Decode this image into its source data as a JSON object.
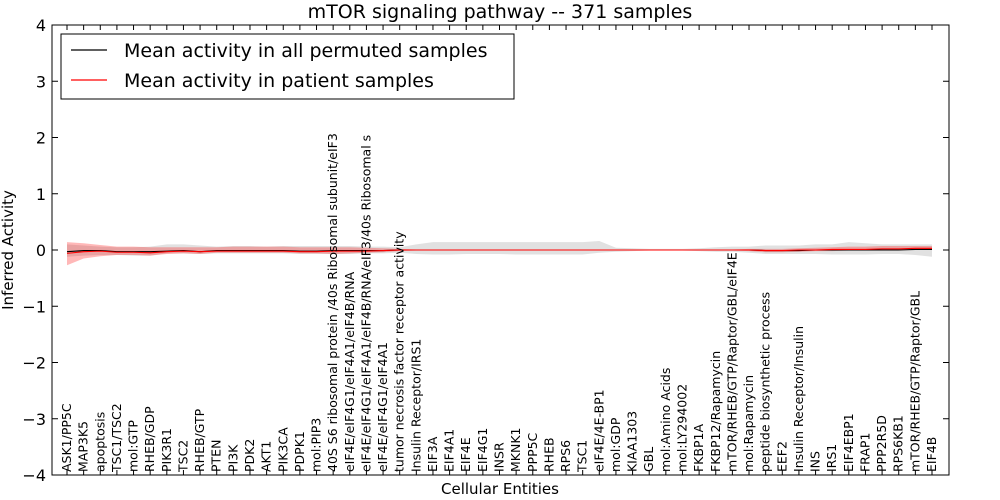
{
  "chart_data": {
    "type": "line",
    "title": "mTOR signaling pathway -- 371 samples",
    "xlabel": "Cellular Entities",
    "ylabel": "Inferred Activity",
    "ylim": [
      -4,
      4
    ],
    "yticks": [
      "−4",
      "−3",
      "−2",
      "−1",
      "0",
      "1",
      "2",
      "3",
      "4"
    ],
    "yticks_values": [
      -4,
      -3,
      -2,
      -1,
      0,
      1,
      2,
      3,
      4
    ],
    "grid": false,
    "legend_position": "top-left",
    "categories": [
      "ASK1/PP5C",
      "MAP3K5",
      "apoptosis",
      "TSC1/TSC2",
      "mol:GTP",
      "RHEB/GDP",
      "PIK3R1",
      "TSC2",
      "RHEB/GTP",
      "PTEN",
      "PI3K",
      "PDK2",
      "AKT1",
      "PIK3CA",
      "PDPK1",
      "mol:PIP3",
      "40S S6 ribosomal protein /40s Ribosomal subunit/eIF3",
      "eIF4E/eIF4G1/eIF4A1/eIF4B/RNA",
      "eIF4E/eIF4G1/eIF4A1/eIF4B/RNA/eIF3/40s Ribosomal s",
      "eIF4E/eIF4G1/eIF4A1",
      "tumor necrosis factor receptor activity",
      "Insulin Receptor/IRS1",
      "EIF3A",
      "EIF4A1",
      "EIF4E",
      "EIF4G1",
      "INSR",
      "MKNK1",
      "PPP5C",
      "RHEB",
      "RPS6",
      "TSC1",
      "eIF4E/4E-BP1",
      "mol:GDP",
      "KIAA1303",
      "GBL",
      "mol:Amino Acids",
      "mol:LY294002",
      "FKBP1A",
      "FKBP12/Rapamycin",
      "mTOR/RHEB/GTP/Raptor/GBL/eIF4E",
      "mol:Rapamycin",
      "peptide biosynthetic process",
      "EEF2",
      "Insulin Receptor/Insulin",
      "INS",
      "IRS1",
      "EIF4EBP1",
      "FRAP1",
      "PPP2R5D",
      "RPS6KB1",
      "mTOR/RHEB/GTP/Raptor/GBL",
      "EIF4B"
    ],
    "series": [
      {
        "name": "Mean activity in all permuted samples",
        "color": "#000000",
        "values": [
          -0.03,
          -0.01,
          -0.01,
          -0.03,
          -0.03,
          -0.03,
          -0.02,
          -0.01,
          -0.03,
          -0.01,
          -0.01,
          -0.01,
          -0.01,
          -0.01,
          -0.02,
          -0.02,
          -0.01,
          -0.01,
          -0.01,
          -0.01,
          0,
          0,
          0,
          0,
          0,
          0,
          0,
          0,
          0,
          0,
          0,
          0,
          0,
          0,
          0,
          0,
          0,
          0,
          0,
          0,
          0,
          0,
          -0.01,
          -0.01,
          -0.01,
          0,
          0,
          0,
          0,
          0,
          0,
          0.01,
          0.01
        ],
        "band_lower": [
          -0.12,
          -0.1,
          -0.09,
          -0.09,
          -0.1,
          -0.1,
          -0.06,
          -0.06,
          -0.07,
          -0.06,
          -0.06,
          -0.06,
          -0.06,
          -0.06,
          -0.07,
          -0.07,
          -0.07,
          -0.07,
          -0.06,
          -0.06,
          -0.05,
          -0.07,
          -0.08,
          -0.08,
          -0.07,
          -0.07,
          -0.07,
          -0.08,
          -0.08,
          -0.08,
          -0.08,
          -0.08,
          -0.05,
          -0.03,
          -0.02,
          -0.01,
          -0.01,
          -0.01,
          -0.02,
          -0.03,
          -0.03,
          -0.05,
          -0.07,
          -0.07,
          -0.07,
          -0.07,
          -0.08,
          -0.08,
          -0.08,
          -0.07,
          -0.07,
          -0.09,
          -0.12
        ],
        "band_upper": [
          0.1,
          0.08,
          0.06,
          0.05,
          0.05,
          0.06,
          0.1,
          0.1,
          0.08,
          0.06,
          0.07,
          0.07,
          0.06,
          0.07,
          0.07,
          0.07,
          0.07,
          0.07,
          0.06,
          0.06,
          0.05,
          0.1,
          0.14,
          0.14,
          0.14,
          0.14,
          0.14,
          0.14,
          0.14,
          0.14,
          0.14,
          0.14,
          0.16,
          0.04,
          0.03,
          0.02,
          0.02,
          0.02,
          0.03,
          0.05,
          0.06,
          0.06,
          0.08,
          0.08,
          0.08,
          0.1,
          0.1,
          0.14,
          0.12,
          0.1,
          0.1,
          0.1,
          0.1
        ]
      },
      {
        "name": "Mean activity in patient samples",
        "color": "#ff0000",
        "values": [
          -0.06,
          -0.03,
          -0.02,
          -0.04,
          -0.04,
          -0.05,
          -0.03,
          -0.02,
          -0.03,
          -0.02,
          -0.02,
          -0.02,
          -0.02,
          -0.02,
          -0.03,
          -0.03,
          -0.02,
          -0.02,
          -0.02,
          -0.01,
          0,
          0,
          0,
          0,
          0,
          0,
          0,
          0,
          0,
          0,
          0,
          0,
          0,
          0,
          0,
          0,
          0,
          0,
          0,
          0,
          0,
          0,
          -0.01,
          -0.01,
          0,
          0,
          0.01,
          0.01,
          0.01,
          0.02,
          0.02,
          0.03,
          0.03
        ],
        "band_lower": [
          -0.27,
          -0.15,
          -0.11,
          -0.09,
          -0.09,
          -0.1,
          -0.07,
          -0.06,
          -0.07,
          -0.05,
          -0.05,
          -0.05,
          -0.05,
          -0.05,
          -0.06,
          -0.06,
          -0.07,
          -0.06,
          -0.05,
          -0.04,
          -0.02,
          -0.01,
          -0.01,
          -0.01,
          -0.01,
          -0.01,
          -0.01,
          -0.01,
          -0.01,
          -0.01,
          -0.01,
          -0.01,
          -0.01,
          -0.01,
          -0.01,
          -0.01,
          -0.01,
          -0.01,
          -0.01,
          -0.01,
          -0.01,
          -0.02,
          -0.04,
          -0.04,
          -0.03,
          -0.02,
          -0.02,
          -0.01,
          -0.01,
          0,
          0,
          0,
          0
        ],
        "band_upper": [
          0.14,
          0.12,
          0.09,
          0.06,
          0.06,
          0.05,
          0.05,
          0.05,
          0.05,
          0.05,
          0.06,
          0.06,
          0.06,
          0.06,
          0.05,
          0.05,
          0.05,
          0.05,
          0.04,
          0.03,
          0.02,
          0.01,
          0.01,
          0.01,
          0.01,
          0.01,
          0.01,
          0.01,
          0.01,
          0.01,
          0.01,
          0.01,
          0.01,
          0.01,
          0.01,
          0.01,
          0.01,
          0.01,
          0.01,
          0.01,
          0.01,
          0.02,
          0.02,
          0.02,
          0.03,
          0.04,
          0.05,
          0.06,
          0.06,
          0.07,
          0.07,
          0.07,
          0.07
        ]
      }
    ]
  }
}
